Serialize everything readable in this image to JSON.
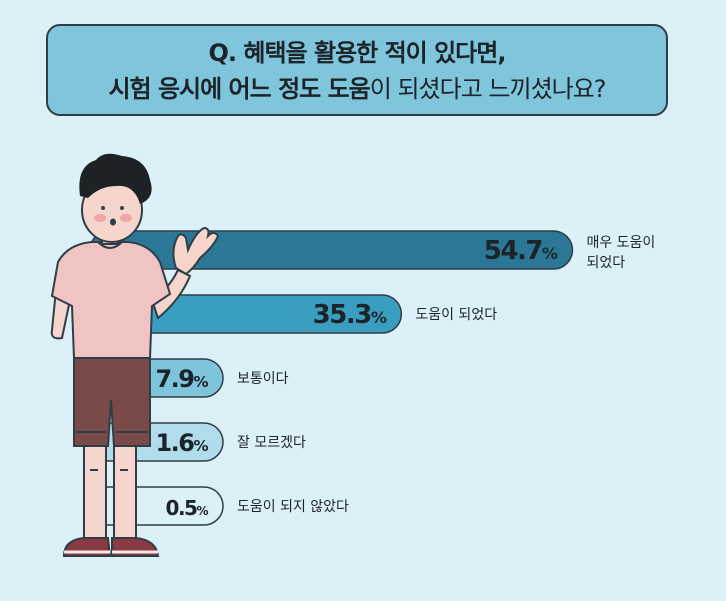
{
  "title": {
    "line1": "Q. 혜택을 활용한 적이 있다면,",
    "line2_bold": "시험 응시에 어느 정도 도움",
    "line2_light": "이 되셨다고 느끼셨나요?"
  },
  "chart_data": {
    "type": "bar",
    "orientation": "horizontal",
    "categories": [
      "매우 도움이 되었다",
      "도움이 되었다",
      "보통이다",
      "잘 모르겠다",
      "도움이 되지 않았다"
    ],
    "category_lines": [
      [
        "매우 도움이",
        "되었다"
      ],
      [
        "도움이 되었다"
      ],
      [
        "보통이다"
      ],
      [
        "잘 모르겠다"
      ],
      [
        "도움이 되지 않았다"
      ]
    ],
    "values": [
      54.7,
      35.3,
      7.9,
      1.6,
      0.5
    ],
    "value_labels": [
      "54.7",
      "35.3",
      "7.9",
      "1.6",
      "0.5"
    ],
    "unit": "%",
    "bar_colors": [
      "#2a7895",
      "#3a9ec1",
      "#7ec5dc",
      "#b1dceb",
      "#dcf0f7"
    ],
    "value_text_color": "#1c2329"
  },
  "colors": {
    "background": "#dcf0f7",
    "title_box": "#7fc6dc",
    "outline": "#2f3d46"
  }
}
